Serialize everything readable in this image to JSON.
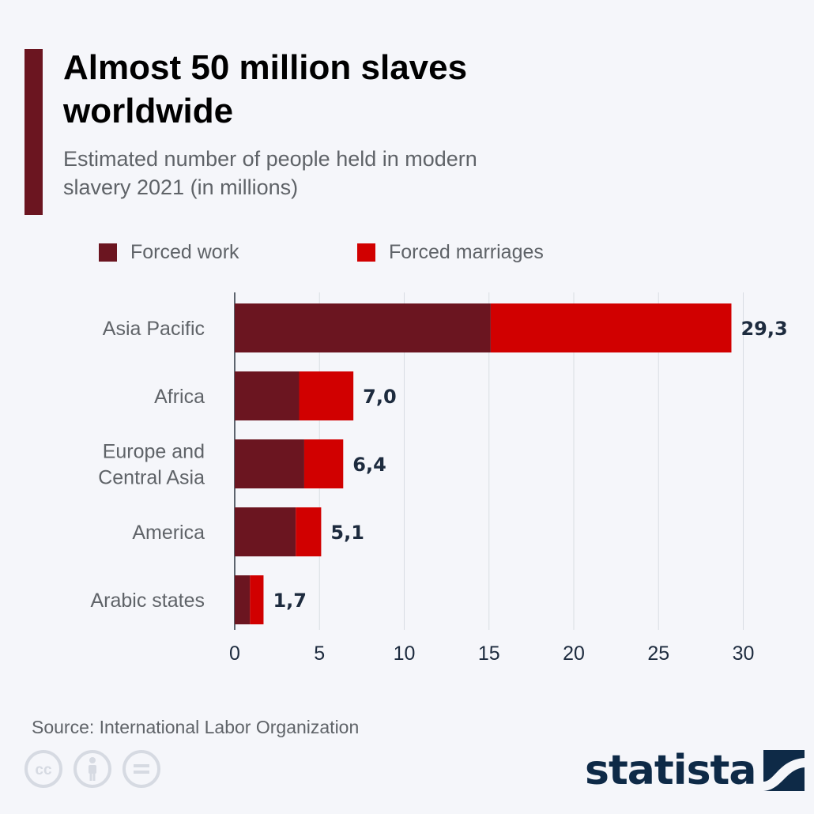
{
  "header": {
    "title": "Almost 50 million slaves worldwide",
    "subtitle": "Estimated number of people held in modern slavery 2021 (in millions)"
  },
  "colors": {
    "accent": "#6b1520",
    "forced_work": "#6b1520",
    "forced_marriages": "#d10000",
    "value_label": "#1d2b3e",
    "brand": "#0e2a47"
  },
  "legend": [
    {
      "label": "Forced work",
      "color": "#6b1520"
    },
    {
      "label": "Forced marriages",
      "color": "#d10000"
    }
  ],
  "chart_data": {
    "type": "bar",
    "orientation": "horizontal",
    "stacked": true,
    "categories": [
      "Asia Pacific",
      "Africa",
      "Europe and Central Asia",
      "America",
      "Arabic states"
    ],
    "series": [
      {
        "name": "Forced work",
        "values": [
          15.1,
          3.8,
          4.1,
          3.6,
          0.9
        ]
      },
      {
        "name": "Forced marriages",
        "values": [
          14.2,
          3.2,
          2.3,
          1.5,
          0.8
        ]
      }
    ],
    "totals": [
      "29,3",
      "7,0",
      "6,4",
      "5,1",
      "1,7"
    ],
    "x_ticks": [
      "0",
      "5",
      "10",
      "15",
      "20",
      "25",
      "30"
    ],
    "xlim": [
      0,
      30
    ],
    "grid": true,
    "legend_position": "top"
  },
  "footer": {
    "source": "Source: International Labor Organization",
    "brand": "statista",
    "license_icons": [
      "creative-commons-icon",
      "attribution-icon",
      "no-derivatives-icon"
    ]
  }
}
